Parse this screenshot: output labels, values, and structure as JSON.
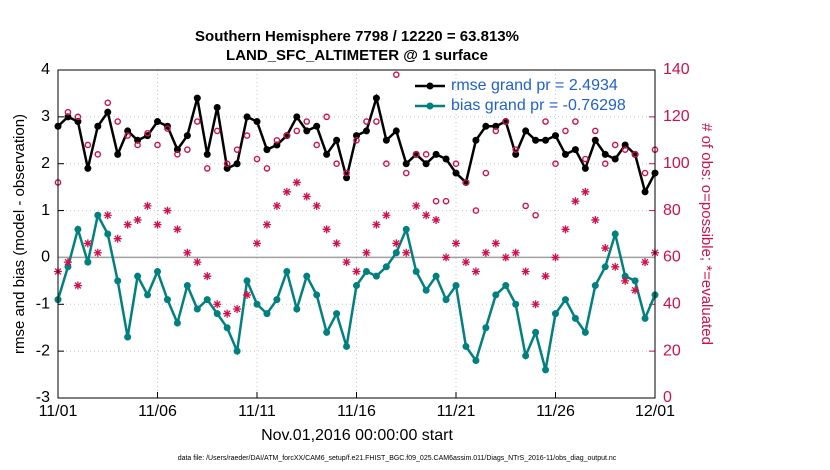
{
  "chart_data": {
    "type": "line",
    "title": "Southern Hemisphere 7798 / 12220 = 63.813%",
    "subtitle": "LAND_SFC_ALTIMETER @ 1 surface",
    "xlabel": "Nov.01,2016 00:00:00 start",
    "ylabel": "rmse and bias (model - observation)",
    "y2label": "# of obs: o=possible; *=evaluated",
    "footnote": "data file: /Users/raeder/DAI/ATM_forcXX/CAM6_setup/f.e21.FHIST_BGC.f09_025.CAM6assim.011/Diags_NTrS_2016-11/obs_diag_output.nc",
    "xlim": [
      0,
      30
    ],
    "xticks": [
      {
        "value": 0,
        "label": "11/01"
      },
      {
        "value": 5,
        "label": "11/06"
      },
      {
        "value": 10,
        "label": "11/11"
      },
      {
        "value": 15,
        "label": "11/16"
      },
      {
        "value": 20,
        "label": "11/21"
      },
      {
        "value": 25,
        "label": "11/26"
      },
      {
        "value": 30,
        "label": "12/01"
      }
    ],
    "ylim": [
      -3,
      4
    ],
    "yticks": [
      -3,
      -2,
      -1,
      0,
      1,
      2,
      3,
      4
    ],
    "y2lim": [
      0,
      140
    ],
    "y2ticks": [
      0,
      20,
      40,
      60,
      80,
      100,
      120,
      140
    ],
    "grid": true,
    "legend": "upper right",
    "x": [
      0,
      0.5,
      1,
      1.5,
      2,
      2.5,
      3,
      3.5,
      4,
      4.5,
      5,
      5.5,
      6,
      6.5,
      7,
      7.5,
      8,
      8.5,
      9,
      9.5,
      10,
      10.5,
      11,
      11.5,
      12,
      12.5,
      13,
      13.5,
      14,
      14.5,
      15,
      15.5,
      16,
      16.5,
      17,
      17.5,
      18,
      18.5,
      19,
      19.5,
      20,
      20.5,
      21,
      21.5,
      22,
      22.5,
      23,
      23.5,
      24,
      24.5,
      25,
      25.5,
      26,
      26.5,
      27,
      27.5,
      28,
      28.5,
      29,
      29.5,
      30
    ],
    "series": [
      {
        "name": "rmse grand pr = 2.4934",
        "color": "#000000",
        "marker": "dot",
        "axis": "y",
        "values": [
          2.8,
          3.0,
          2.9,
          1.9,
          2.8,
          3.1,
          2.2,
          2.7,
          2.5,
          2.6,
          2.9,
          2.8,
          2.3,
          2.6,
          3.4,
          2.2,
          3.2,
          1.9,
          2.0,
          3.0,
          2.9,
          2.3,
          2.4,
          2.6,
          3.0,
          2.7,
          2.8,
          2.2,
          2.5,
          1.7,
          2.6,
          2.7,
          3.4,
          2.5,
          2.7,
          2.0,
          2.2,
          2.0,
          2.2,
          2.1,
          1.8,
          1.6,
          2.5,
          2.8,
          2.8,
          2.9,
          2.2,
          2.7,
          2.5,
          2.5,
          2.6,
          2.2,
          2.3,
          1.9,
          2.5,
          2.2,
          2.1,
          2.4,
          2.2,
          1.4,
          1.8
        ]
      },
      {
        "name": "bias grand pr = -0.76298",
        "color": "#00807f",
        "marker": "dot",
        "axis": "y",
        "values": [
          -0.9,
          -0.2,
          0.6,
          -0.1,
          0.9,
          0.5,
          -0.5,
          -1.7,
          -0.4,
          -0.8,
          -0.3,
          -0.9,
          -1.4,
          -0.6,
          -1.1,
          -0.9,
          -1.2,
          -1.5,
          -2.0,
          -0.5,
          -1.0,
          -1.2,
          -0.9,
          -0.3,
          -1.1,
          -0.4,
          -0.8,
          -1.6,
          -1.2,
          -1.9,
          -0.6,
          -0.3,
          -0.4,
          -0.2,
          0.1,
          0.6,
          -0.3,
          -0.7,
          -0.4,
          -0.9,
          -0.6,
          -1.9,
          -2.2,
          -1.5,
          -0.8,
          -0.6,
          -1.0,
          -2.1,
          -1.6,
          -2.4,
          -1.2,
          -0.9,
          -1.3,
          -1.6,
          -0.6,
          -0.2,
          0.5,
          -0.4,
          -0.5,
          -1.3,
          -0.8
        ]
      },
      {
        "color": "#d0104c",
        "marker": "circle",
        "axis": "y2",
        "values": [
          92,
          122,
          120,
          108,
          104,
          126,
          118,
          112,
          108,
          113,
          108,
          115,
          104,
          106,
          118,
          98,
          114,
          100,
          106,
          112,
          102,
          98,
          110,
          112,
          114,
          118,
          108,
          120,
          100,
          96,
          110,
          118,
          118,
          100,
          138,
          96,
          104,
          104,
          84,
          84,
          100,
          92,
          80,
          96,
          114,
          118,
          106,
          82,
          78,
          118,
          100,
          114,
          118,
          102,
          114,
          100,
          108,
          106,
          104,
          96,
          106
        ]
      },
      {
        "color": "#d0104c",
        "marker": "star",
        "axis": "y2",
        "values": [
          54,
          58,
          48,
          66,
          62,
          78,
          68,
          74,
          76,
          82,
          74,
          80,
          72,
          62,
          58,
          52,
          40,
          36,
          38,
          44,
          66,
          74,
          82,
          88,
          92,
          86,
          82,
          72,
          66,
          58,
          54,
          62,
          74,
          78,
          66,
          62,
          82,
          78,
          76,
          60,
          66,
          58,
          54,
          62,
          66,
          60,
          62,
          54,
          40,
          52,
          60,
          72,
          84,
          88,
          76,
          64,
          56,
          50,
          46,
          58,
          62
        ]
      }
    ]
  }
}
